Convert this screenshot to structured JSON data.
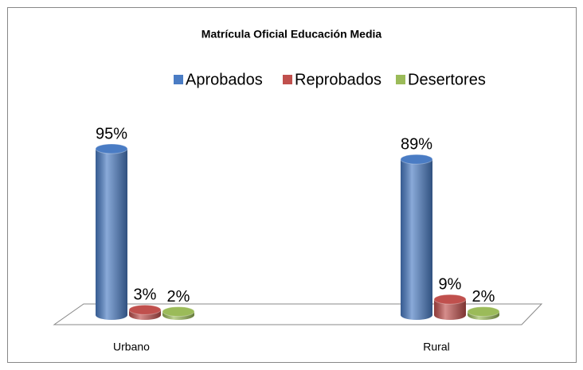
{
  "chart_data": {
    "type": "bar3d",
    "title": "Matrícula Oficial Educación Media",
    "categories": [
      "Urbano",
      "Rural"
    ],
    "series": [
      {
        "name": "Aprobados",
        "color": "#4a7cc4",
        "values": [
          95,
          89
        ],
        "value_labels": [
          "95%",
          "89%"
        ]
      },
      {
        "name": "Reprobados",
        "color": "#c0504d",
        "values": [
          3,
          9
        ],
        "value_labels": [
          "3%",
          "9%"
        ]
      },
      {
        "name": "Desertores",
        "color": "#9bbb59",
        "values": [
          2,
          2
        ],
        "value_labels": [
          "2%",
          "2%"
        ]
      }
    ],
    "legend": "top"
  }
}
